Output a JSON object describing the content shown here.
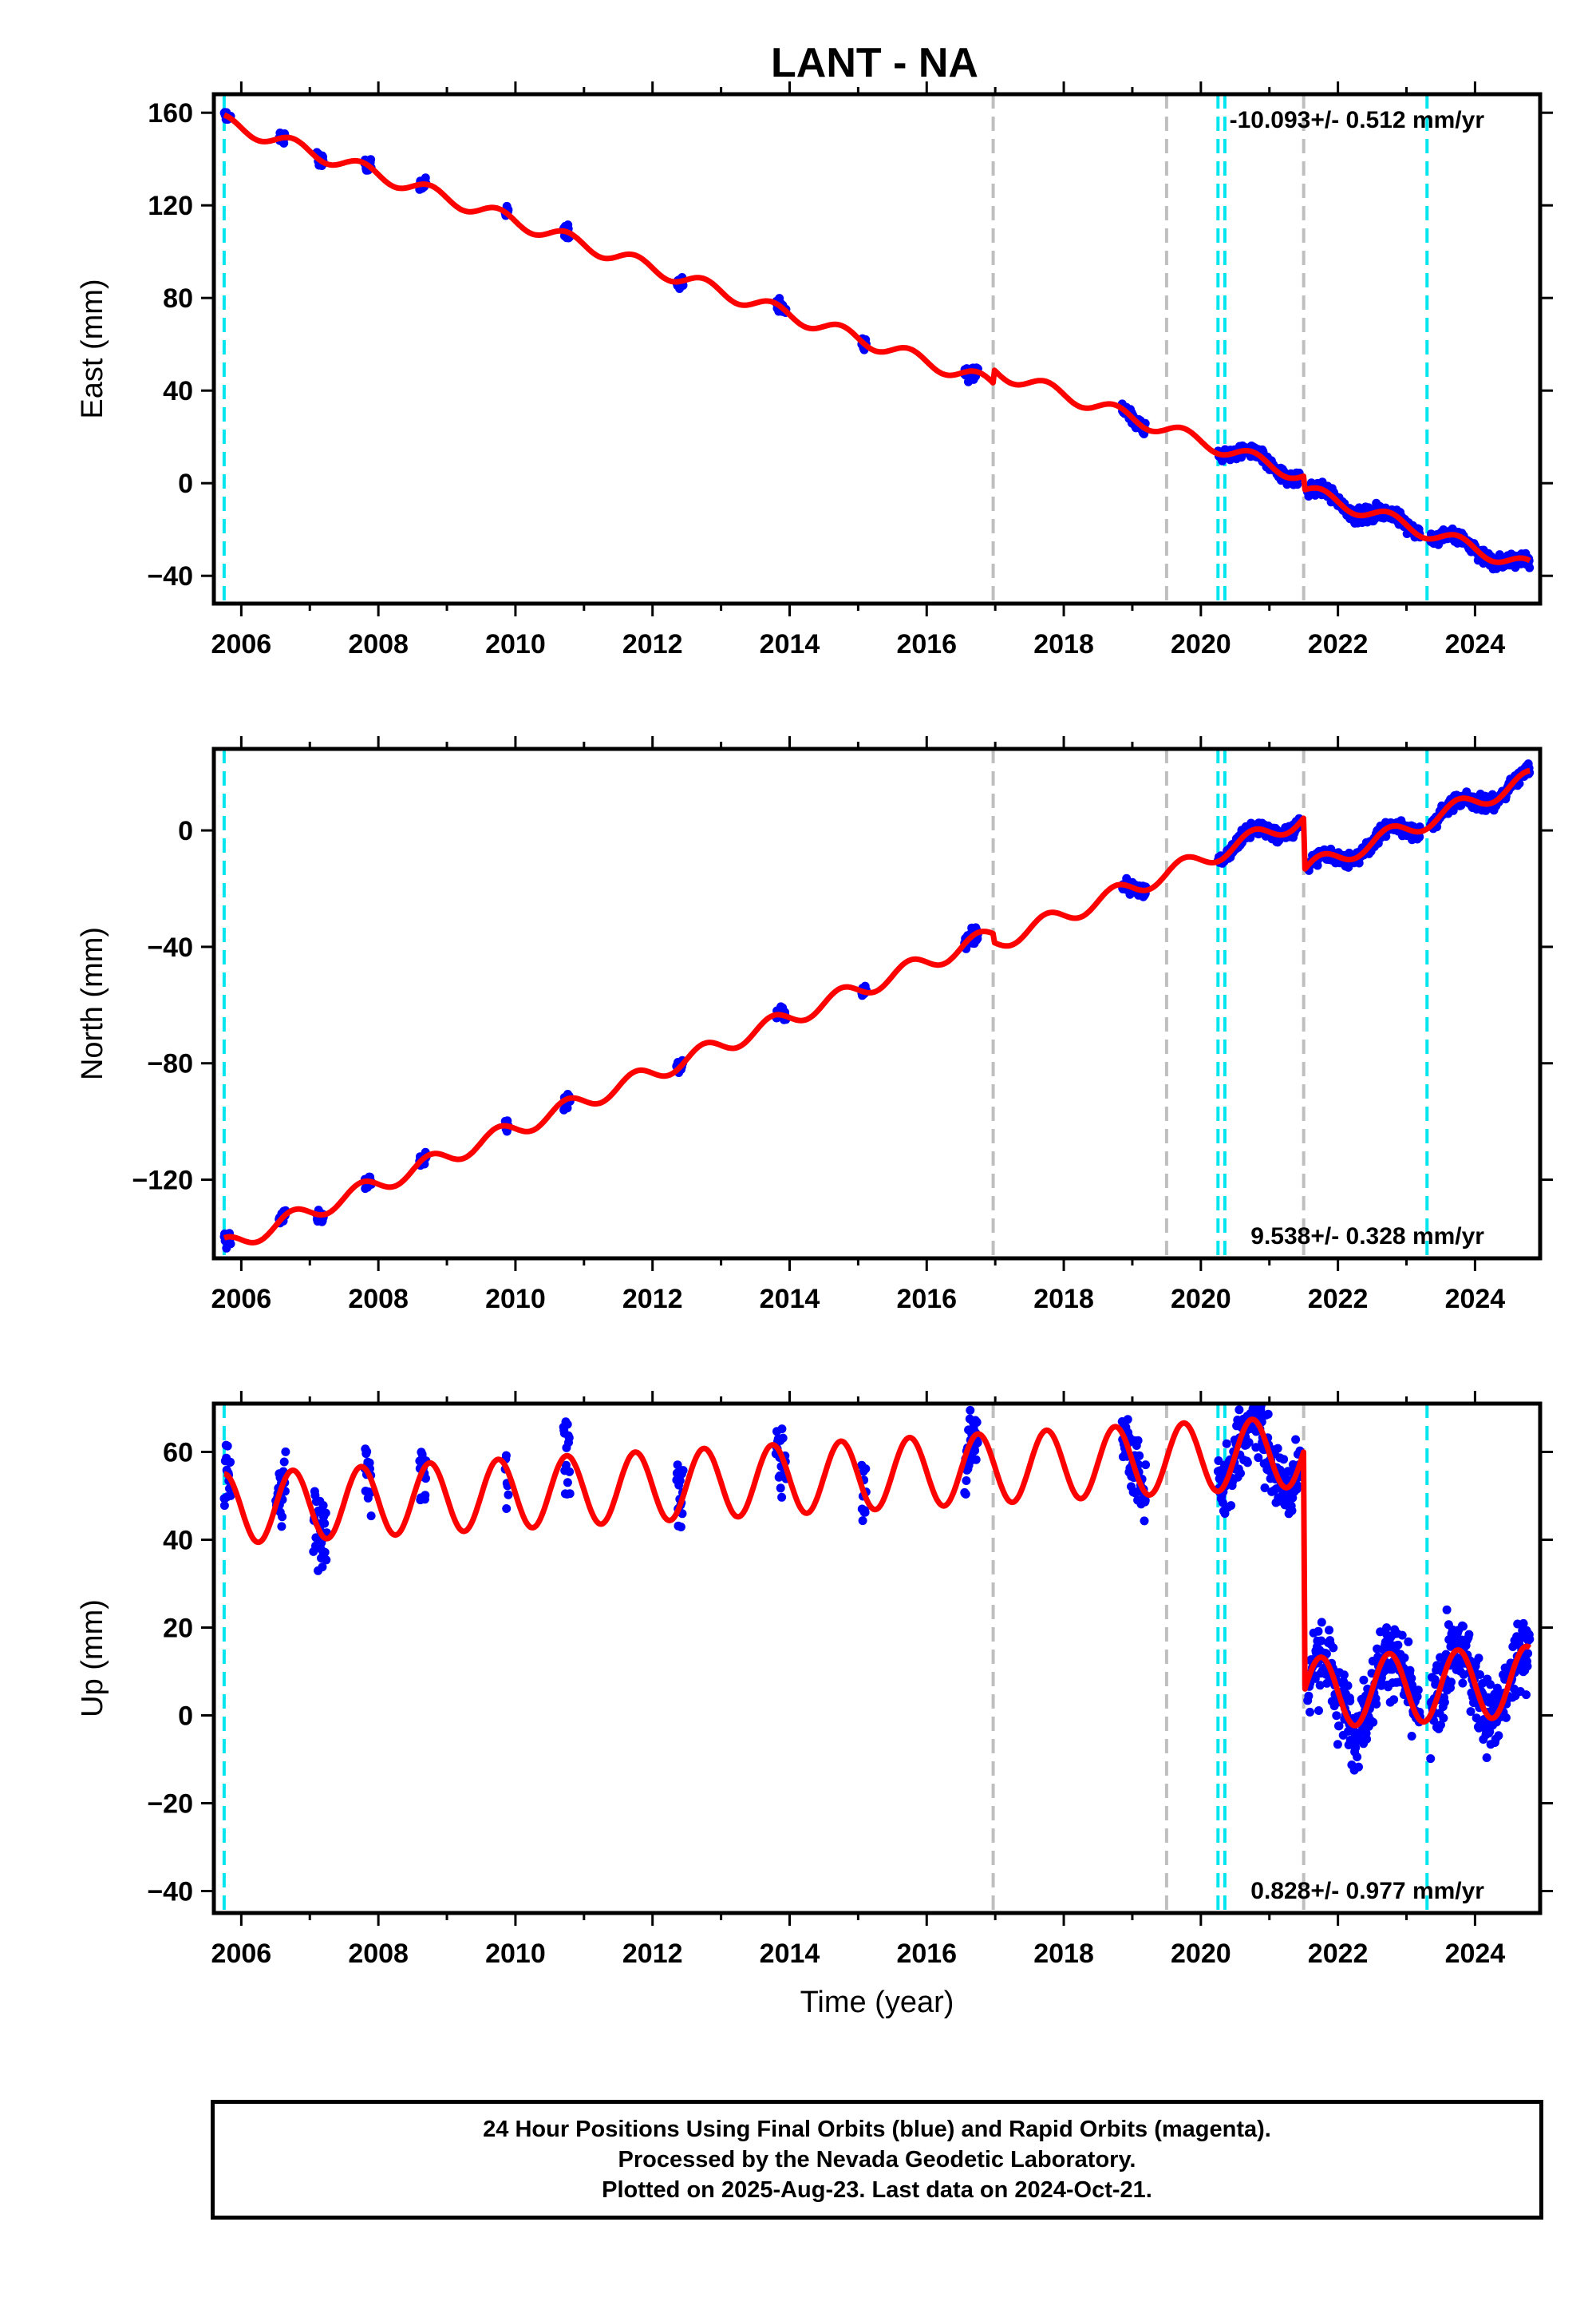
{
  "title": "LANT - NA",
  "colors": {
    "observations": "#0000ff",
    "model": "#ff0000",
    "antenna_change": "#00e5ee",
    "other_event": "#bfbfbf",
    "frame": "#000000"
  },
  "chart_data": [
    {
      "type": "scatter",
      "component": "East",
      "ylabel": "East (mm)",
      "xlim": [
        2005.6,
        2024.95
      ],
      "ylim": [
        -52,
        168
      ],
      "yticks": [
        -40,
        0,
        40,
        80,
        120,
        160
      ],
      "ytick_labels": [
        "−40",
        "0",
        "40",
        "80",
        "120",
        "160"
      ],
      "xticks": [
        2006,
        2008,
        2010,
        2012,
        2014,
        2016,
        2018,
        2020,
        2022,
        2024
      ],
      "xtick_labels": [
        "2006",
        "2008",
        "2010",
        "2012",
        "2014",
        "2016",
        "2018",
        "2020",
        "2022",
        "2024"
      ],
      "rate_label": "-10.093+/- 0.512 mm/yr",
      "rate_position": "top-right",
      "model": {
        "t0": 2005.75,
        "intercept": 156,
        "rate": -10.093,
        "annual_amp": 3,
        "offsets": [
          {
            "t": 2016.97,
            "dy": 6
          },
          {
            "t": 2021.5,
            "dy": -6
          }
        ]
      },
      "data_windows": [
        [
          2005.75,
          2005.85
        ],
        [
          2006.55,
          2006.65
        ],
        [
          2007.1,
          2007.2
        ],
        [
          2007.8,
          2007.9
        ],
        [
          2008.6,
          2008.7
        ],
        [
          2009.85,
          2009.9
        ],
        [
          2010.7,
          2010.8
        ],
        [
          2012.35,
          2012.45
        ],
        [
          2013.8,
          2013.95
        ],
        [
          2015.05,
          2015.12
        ],
        [
          2016.55,
          2016.75
        ],
        [
          2018.85,
          2019.2
        ],
        [
          2020.25,
          2021.45
        ],
        [
          2021.55,
          2023.2
        ],
        [
          2023.35,
          2024.8
        ]
      ],
      "noise": 2.5
    },
    {
      "type": "scatter",
      "component": "North",
      "ylabel": "North (mm)",
      "xlim": [
        2005.6,
        2024.95
      ],
      "ylim": [
        -147,
        28
      ],
      "yticks": [
        -120,
        -80,
        -40,
        0
      ],
      "ytick_labels": [
        "−120",
        "−80",
        "−40",
        "0"
      ],
      "xticks": [
        2006,
        2008,
        2010,
        2012,
        2014,
        2016,
        2018,
        2020,
        2022,
        2024
      ],
      "xtick_labels": [
        "2006",
        "2008",
        "2010",
        "2012",
        "2014",
        "2016",
        "2018",
        "2020",
        "2022",
        "2024"
      ],
      "rate_label": "9.538+/- 0.328 mm/yr",
      "rate_position": "bottom-right",
      "model": {
        "t0": 2005.75,
        "intercept": -143,
        "rate": 9.538,
        "annual_amp": 3,
        "offsets": [
          {
            "t": 2016.97,
            "dy": -3
          },
          {
            "t": 2021.5,
            "dy": -18
          }
        ]
      },
      "data_windows": [
        [
          2005.75,
          2005.85
        ],
        [
          2006.55,
          2006.65
        ],
        [
          2007.1,
          2007.2
        ],
        [
          2007.8,
          2007.9
        ],
        [
          2008.6,
          2008.7
        ],
        [
          2009.85,
          2009.9
        ],
        [
          2010.7,
          2010.8
        ],
        [
          2012.35,
          2012.45
        ],
        [
          2013.8,
          2013.95
        ],
        [
          2015.05,
          2015.12
        ],
        [
          2016.55,
          2016.75
        ],
        [
          2018.85,
          2019.2
        ],
        [
          2020.25,
          2021.45
        ],
        [
          2021.55,
          2023.2
        ],
        [
          2023.35,
          2024.8
        ]
      ],
      "noise": 2
    },
    {
      "type": "scatter",
      "component": "Up",
      "ylabel": "Up (mm)",
      "xlabel": "Time (year)",
      "xlim": [
        2005.6,
        2024.95
      ],
      "ylim": [
        -45,
        71
      ],
      "yticks": [
        -40,
        -20,
        0,
        20,
        40,
        60
      ],
      "ytick_labels": [
        "−40",
        "−20",
        "0",
        "20",
        "40",
        "60"
      ],
      "xticks": [
        2006,
        2008,
        2010,
        2012,
        2014,
        2016,
        2018,
        2020,
        2022,
        2024
      ],
      "xtick_labels": [
        "2006",
        "2008",
        "2010",
        "2012",
        "2014",
        "2016",
        "2018",
        "2020",
        "2022",
        "2024"
      ],
      "rate_label": "0.828+/- 0.977 mm/yr",
      "rate_position": "bottom-right",
      "model": {
        "t0": 2005.75,
        "intercept": 47,
        "rate": 0.828,
        "annual_amp": 8,
        "offsets": [
          {
            "t": 2021.5,
            "dy": -55
          }
        ]
      },
      "data_windows": [
        [
          2005.75,
          2005.85
        ],
        [
          2006.5,
          2006.65
        ],
        [
          2007.05,
          2007.25
        ],
        [
          2007.8,
          2007.9
        ],
        [
          2008.6,
          2008.7
        ],
        [
          2009.85,
          2009.9
        ],
        [
          2010.7,
          2010.8
        ],
        [
          2012.35,
          2012.45
        ],
        [
          2013.8,
          2013.95
        ],
        [
          2015.05,
          2015.12
        ],
        [
          2016.55,
          2016.75
        ],
        [
          2018.85,
          2019.2
        ],
        [
          2020.25,
          2021.45
        ],
        [
          2021.55,
          2023.2
        ],
        [
          2023.35,
          2024.8
        ]
      ],
      "noise": 7
    }
  ],
  "event_lines": {
    "antenna_change": [
      2005.75,
      2020.25,
      2020.35,
      2023.3
    ],
    "other_event": [
      2016.97,
      2019.5,
      2021.5
    ]
  },
  "footer": {
    "line1": "24 Hour Positions Using Final Orbits (blue) and Rapid Orbits (magenta).",
    "line2": "Processed by the Nevada Geodetic Laboratory.",
    "line3": "Plotted on 2025-Aug-23. Last data on 2024-Oct-21."
  }
}
